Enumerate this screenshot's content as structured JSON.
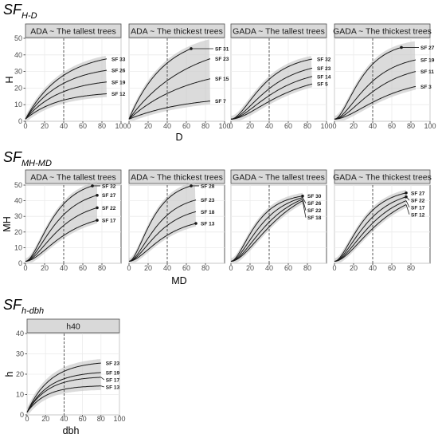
{
  "chart_data": [
    {
      "type": "line",
      "section_title": "SF",
      "section_subscript": "H-D",
      "xlabel": "D",
      "ylabel": "H",
      "xlim": [
        0,
        100
      ],
      "ylim": [
        0,
        50
      ],
      "xticks": [
        "0",
        "20",
        "40",
        "60",
        "80",
        "100"
      ],
      "yticks": [
        "0",
        "10",
        "20",
        "30",
        "40",
        "50"
      ],
      "grid": true,
      "vline_x": 40,
      "panels": [
        {
          "title": "ADA ~ The tallest trees",
          "kind": "ada",
          "band": true,
          "x_max": 85,
          "series": [
            {
              "name": "SF 33",
              "asym": 42,
              "k": 0.0262
            },
            {
              "name": "SF 26",
              "asym": 34,
              "k": 0.027
            },
            {
              "name": "SF 19",
              "asym": 26,
              "k": 0.0278
            },
            {
              "name": "SF 12",
              "asym": 18,
              "k": 0.029
            }
          ]
        },
        {
          "title": "ADA ~ The thickest trees",
          "kind": "ada",
          "band": true,
          "x_max": 85,
          "series": [
            {
              "name": "SF 31",
              "asym": 53,
              "k": 0.0265,
              "x_end": 65,
              "marker": true
            },
            {
              "name": "SF 23",
              "asym": 50,
              "k": 0.0162
            },
            {
              "name": "SF 15",
              "asym": 34,
              "k": 0.016
            },
            {
              "name": "SF 7",
              "asym": 16,
              "k": 0.016
            }
          ]
        },
        {
          "title": "GADA ~ The tallest trees",
          "kind": "gada",
          "band": true,
          "x_max": 85,
          "series": [
            {
              "name": "SF 32",
              "x_end": 85,
              "y_end": 37.5,
              "k": 0.038
            },
            {
              "name": "SF 23",
              "x_end": 85,
              "y_end": 32.0,
              "k": 0.032
            },
            {
              "name": "SF 14",
              "x_end": 85,
              "y_end": 27.0,
              "k": 0.028
            },
            {
              "name": "SF 5",
              "x_end": 85,
              "y_end": 22.5,
              "k": 0.024
            }
          ]
        },
        {
          "title": "GADA ~ The thickest trees",
          "kind": "gada",
          "band": true,
          "x_max": 85,
          "series": [
            {
              "name": "SF 27",
              "x_end": 70,
              "y_end": 44.5,
              "k": 0.046,
              "marker": true
            },
            {
              "name": "SF 19",
              "x_end": 85,
              "y_end": 37.0,
              "k": 0.036
            },
            {
              "name": "SF 11",
              "x_end": 85,
              "y_end": 30.0,
              "k": 0.03
            },
            {
              "name": "SF 3",
              "x_end": 85,
              "y_end": 21.0,
              "k": 0.025
            }
          ]
        }
      ]
    },
    {
      "type": "line",
      "section_title": "SF",
      "section_subscript": "MH-MD",
      "xlabel": "MD",
      "ylabel": "MH",
      "xlim": [
        0,
        100
      ],
      "ylim": [
        0,
        50
      ],
      "xticks": [
        "0",
        "20",
        "40",
        "60",
        "80"
      ],
      "yticks": [
        "0",
        "10",
        "20",
        "30",
        "40",
        "50"
      ],
      "grid": true,
      "vline_x": 40,
      "panels": [
        {
          "title": "ADA ~ The tallest trees",
          "kind": "gada",
          "band": true,
          "x_max": 75,
          "series": [
            {
              "name": "SF 32",
              "x_end": 70,
              "y_end": 49.5,
              "k": 0.045,
              "marker": true
            },
            {
              "name": "SF 27",
              "x_end": 75,
              "y_end": 43.5,
              "k": 0.04,
              "marker": true
            },
            {
              "name": "SF 22",
              "x_end": 75,
              "y_end": 35.5,
              "k": 0.036,
              "marker": true
            },
            {
              "name": "SF 17",
              "x_end": 75,
              "y_end": 27.5,
              "k": 0.032,
              "marker": true
            }
          ]
        },
        {
          "title": "ADA ~ The thickest trees",
          "kind": "gada",
          "band": true,
          "x_max": 70,
          "series": [
            {
              "name": "SF 28",
              "x_end": 65,
              "y_end": 49.5,
              "k": 0.052,
              "marker": true
            },
            {
              "name": "SF 23",
              "x_end": 70,
              "y_end": 40.5,
              "k": 0.044
            },
            {
              "name": "SF 18",
              "x_end": 70,
              "y_end": 33.0,
              "k": 0.04
            },
            {
              "name": "SF 13",
              "x_end": 70,
              "y_end": 25.5,
              "k": 0.036,
              "marker": true
            }
          ]
        },
        {
          "title": "GADA ~ The tallest trees",
          "kind": "gada",
          "band": true,
          "x_max": 75,
          "series": [
            {
              "name": "SF 30",
              "x_end": 75,
              "y_end": 43.0,
              "k": 0.05,
              "marker": true
            },
            {
              "name": "SF 26",
              "x_end": 75,
              "y_end": 42.0,
              "k": 0.04
            },
            {
              "name": "SF 22",
              "x_end": 75,
              "y_end": 41.0,
              "k": 0.032
            },
            {
              "name": "SF 18",
              "x_end": 75,
              "y_end": 40.0,
              "k": 0.026
            }
          ]
        },
        {
          "title": "GADA ~ The thickest trees",
          "kind": "gada",
          "band": true,
          "x_max": 75,
          "series": [
            {
              "name": "SF 27",
              "x_end": 75,
              "y_end": 45.0,
              "k": 0.045,
              "marker": true
            },
            {
              "name": "SF 22",
              "x_end": 75,
              "y_end": 42.5,
              "k": 0.038,
              "marker": true
            },
            {
              "name": "SF 17",
              "x_end": 75,
              "y_end": 40.0,
              "k": 0.032
            },
            {
              "name": "SF 12",
              "x_end": 75,
              "y_end": 37.5,
              "k": 0.027
            }
          ]
        }
      ]
    },
    {
      "type": "line",
      "section_title": "SF",
      "section_subscript": "h-dbh",
      "xlabel": "dbh",
      "ylabel": "h",
      "xlim": [
        0,
        100
      ],
      "ylim": [
        0,
        40
      ],
      "xticks": [
        "0",
        "20",
        "40",
        "60",
        "80",
        "100"
      ],
      "yticks": [
        "0",
        "10",
        "20",
        "30",
        "40"
      ],
      "grid": true,
      "vline_x": 40,
      "panels": [
        {
          "title": "h40",
          "kind": "ada",
          "band": true,
          "x_max": 80,
          "series": [
            {
              "name": "SF 23",
              "asym": 26.5,
              "k": 0.04
            },
            {
              "name": "SF 19",
              "asym": 21.5,
              "k": 0.042
            },
            {
              "name": "SF 17",
              "asym": 19.0,
              "k": 0.044
            },
            {
              "name": "SF 13",
              "asym": 14.5,
              "k": 0.048
            }
          ]
        }
      ]
    }
  ],
  "colors": {
    "strip_fill": "#d9d9d9",
    "strip_border": "#4d4d4d",
    "line": "#1a1a1a",
    "band": "#c8c8c8",
    "grid": "#ebebeb"
  }
}
